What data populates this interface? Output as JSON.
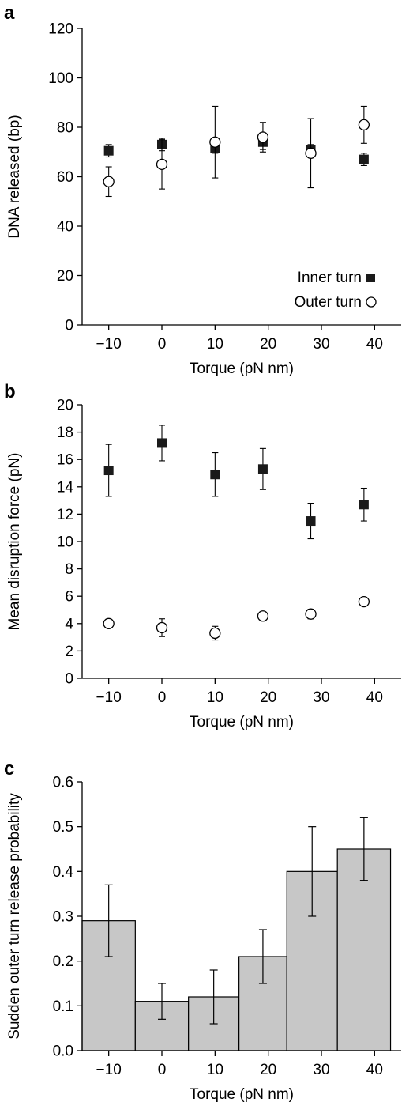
{
  "chart_data": [
    {
      "panel": "a",
      "type": "scatter",
      "xlabel": "Torque (pN nm)",
      "ylabel": "DNA released (bp)",
      "xlim": [
        -15,
        45
      ],
      "ylim": [
        0,
        120
      ],
      "xticks": [
        -10,
        0,
        10,
        20,
        30,
        40
      ],
      "xtick_labels": [
        "−10",
        "0",
        "10",
        "20",
        "30",
        "40"
      ],
      "yticks": [
        0,
        20,
        40,
        60,
        80,
        100,
        120
      ],
      "grid": false,
      "legend": "bottom-right",
      "series": [
        {
          "name": "Inner turn",
          "marker": "filled-square",
          "x": [
            -10,
            0,
            10,
            19,
            28,
            38
          ],
          "y": [
            70.5,
            73,
            71.5,
            74,
            71,
            67
          ],
          "err": [
            2.5,
            2.5,
            2,
            3,
            2,
            2.5
          ]
        },
        {
          "name": "Outer turn",
          "marker": "open-circle",
          "x": [
            -10,
            0,
            10,
            19,
            28,
            38
          ],
          "y": [
            58,
            65,
            74,
            76,
            69.5,
            81
          ],
          "err": [
            6,
            10,
            14.5,
            6,
            14,
            7.5
          ]
        }
      ]
    },
    {
      "panel": "b",
      "type": "scatter",
      "xlabel": "Torque (pN nm)",
      "ylabel": "Mean disruption force (pN)",
      "xlim": [
        -15,
        45
      ],
      "ylim": [
        0,
        20
      ],
      "xticks": [
        -10,
        0,
        10,
        20,
        30,
        40
      ],
      "xtick_labels": [
        "−10",
        "0",
        "10",
        "20",
        "30",
        "40"
      ],
      "yticks": [
        0,
        2,
        4,
        6,
        8,
        10,
        12,
        14,
        16,
        18,
        20
      ],
      "grid": false,
      "series": [
        {
          "marker": "filled-square",
          "x": [
            -10,
            0,
            10,
            19,
            28,
            38
          ],
          "y": [
            15.2,
            17.2,
            14.9,
            15.3,
            11.5,
            12.7
          ],
          "err": [
            1.9,
            1.3,
            1.6,
            1.5,
            1.3,
            1.2
          ]
        },
        {
          "marker": "open-circle",
          "x": [
            -10,
            0,
            10,
            19,
            28,
            38
          ],
          "y": [
            4.0,
            3.7,
            3.3,
            4.55,
            4.7,
            5.6
          ],
          "err": [
            0.15,
            0.65,
            0.5,
            0.3,
            0.35,
            0.15
          ]
        }
      ]
    },
    {
      "panel": "c",
      "type": "bar",
      "xlabel": "Torque (pN nm)",
      "ylabel": "Sudden outer turn release probability",
      "xlim": [
        -15,
        45
      ],
      "ylim": [
        0,
        0.6
      ],
      "xticks": [
        -10,
        0,
        10,
        20,
        30,
        40
      ],
      "xtick_labels": [
        "−10",
        "0",
        "10",
        "20",
        "30",
        "40"
      ],
      "yticks": [
        0,
        0.1,
        0.2,
        0.3,
        0.4,
        0.5,
        0.6
      ],
      "ytick_labels": [
        "0.0",
        "0.1",
        "0.2",
        "0.3",
        "0.4",
        "0.5",
        "0.6"
      ],
      "grid": false,
      "bar_color": "#c7c7c7",
      "bin_edges": [
        -15,
        -5,
        5,
        14.5,
        23.5,
        33,
        43
      ],
      "values": [
        0.29,
        0.11,
        0.12,
        0.21,
        0.4,
        0.45
      ],
      "err": [
        0.08,
        0.04,
        0.06,
        0.06,
        0.1,
        0.07
      ]
    }
  ]
}
